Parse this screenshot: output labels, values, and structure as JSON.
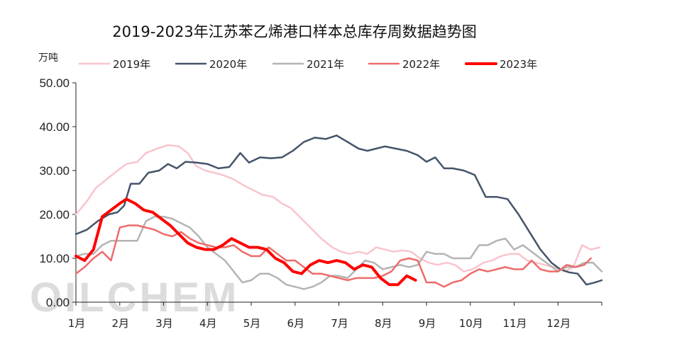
{
  "chart_data": {
    "type": "line",
    "title": "2019-2023年江苏苯乙烯港口样本总库存周数据趋势图",
    "unit_label": "万吨",
    "watermark": "OILCHEM",
    "ylim": [
      0,
      50
    ],
    "y_ticks": [
      "0.00",
      "10.00",
      "20.00",
      "30.00",
      "40.00",
      "50.00"
    ],
    "x_range": [
      1,
      13
    ],
    "x_ticks": [
      "1月",
      "2月",
      "3月",
      "4月",
      "5月",
      "6月",
      "7月",
      "8月",
      "9月",
      "10月",
      "11月",
      "12月"
    ],
    "legend_position": "top",
    "grid": false,
    "series": [
      {
        "name": "2019年",
        "color": "#f9c4cc",
        "width": 2.5,
        "points": [
          [
            1.0,
            20.0
          ],
          [
            1.25,
            23.0
          ],
          [
            1.45,
            26.0
          ],
          [
            1.7,
            28.0
          ],
          [
            1.95,
            30.0
          ],
          [
            2.15,
            31.5
          ],
          [
            2.4,
            32.0
          ],
          [
            2.6,
            34.0
          ],
          [
            2.85,
            35.0
          ],
          [
            3.1,
            35.8
          ],
          [
            3.35,
            35.5
          ],
          [
            3.55,
            34.0
          ],
          [
            3.75,
            31.0
          ],
          [
            3.95,
            30.0
          ],
          [
            4.15,
            29.5
          ],
          [
            4.35,
            29.0
          ],
          [
            4.6,
            28.0
          ],
          [
            4.85,
            26.5
          ],
          [
            5.05,
            25.5
          ],
          [
            5.25,
            24.5
          ],
          [
            5.5,
            24.0
          ],
          [
            5.7,
            22.5
          ],
          [
            5.9,
            21.5
          ],
          [
            6.1,
            19.5
          ],
          [
            6.35,
            17.0
          ],
          [
            6.6,
            14.5
          ],
          [
            6.85,
            12.5
          ],
          [
            7.05,
            11.5
          ],
          [
            7.25,
            11.0
          ],
          [
            7.45,
            11.5
          ],
          [
            7.65,
            11.0
          ],
          [
            7.85,
            12.5
          ],
          [
            8.05,
            12.0
          ],
          [
            8.25,
            11.5
          ],
          [
            8.45,
            11.8
          ],
          [
            8.65,
            11.5
          ],
          [
            8.85,
            10.0
          ],
          [
            9.05,
            9.0
          ],
          [
            9.25,
            8.5
          ],
          [
            9.45,
            9.0
          ],
          [
            9.65,
            8.5
          ],
          [
            9.85,
            7.0
          ],
          [
            10.05,
            7.5
          ],
          [
            10.3,
            9.0
          ],
          [
            10.5,
            9.5
          ],
          [
            10.7,
            10.5
          ],
          [
            10.9,
            11.0
          ],
          [
            11.1,
            11.0
          ],
          [
            11.3,
            9.5
          ],
          [
            11.5,
            9.0
          ],
          [
            11.7,
            8.5
          ],
          [
            11.9,
            8.0
          ],
          [
            12.15,
            7.0
          ],
          [
            12.35,
            8.0
          ],
          [
            12.55,
            13.0
          ],
          [
            12.75,
            12.0
          ],
          [
            12.95,
            12.5
          ]
        ]
      },
      {
        "name": "2020年",
        "color": "#44546a",
        "width": 2.5,
        "points": [
          [
            1.0,
            15.5
          ],
          [
            1.25,
            16.5
          ],
          [
            1.5,
            18.5
          ],
          [
            1.75,
            20.0
          ],
          [
            1.95,
            20.5
          ],
          [
            2.1,
            22.0
          ],
          [
            2.25,
            27.0
          ],
          [
            2.45,
            27.0
          ],
          [
            2.65,
            29.5
          ],
          [
            2.9,
            30.0
          ],
          [
            3.1,
            31.5
          ],
          [
            3.3,
            30.5
          ],
          [
            3.5,
            32.0
          ],
          [
            3.75,
            31.8
          ],
          [
            4.0,
            31.5
          ],
          [
            4.25,
            30.5
          ],
          [
            4.5,
            30.8
          ],
          [
            4.75,
            34.0
          ],
          [
            4.95,
            31.8
          ],
          [
            5.2,
            33.0
          ],
          [
            5.45,
            32.8
          ],
          [
            5.7,
            33.0
          ],
          [
            5.95,
            34.5
          ],
          [
            6.2,
            36.5
          ],
          [
            6.45,
            37.5
          ],
          [
            6.7,
            37.2
          ],
          [
            6.95,
            38.0
          ],
          [
            7.2,
            36.5
          ],
          [
            7.45,
            35.0
          ],
          [
            7.65,
            34.5
          ],
          [
            7.85,
            35.0
          ],
          [
            8.05,
            35.5
          ],
          [
            8.3,
            35.0
          ],
          [
            8.55,
            34.5
          ],
          [
            8.8,
            33.5
          ],
          [
            9.0,
            32.0
          ],
          [
            9.2,
            33.0
          ],
          [
            9.4,
            30.5
          ],
          [
            9.6,
            30.5
          ],
          [
            9.85,
            30.0
          ],
          [
            10.1,
            29.0
          ],
          [
            10.35,
            24.0
          ],
          [
            10.6,
            24.0
          ],
          [
            10.85,
            23.5
          ],
          [
            11.1,
            20.0
          ],
          [
            11.35,
            16.0
          ],
          [
            11.6,
            12.0
          ],
          [
            11.85,
            9.0
          ],
          [
            12.05,
            7.5
          ],
          [
            12.25,
            6.8
          ],
          [
            12.45,
            6.5
          ],
          [
            12.65,
            4.0
          ],
          [
            12.85,
            4.5
          ],
          [
            13.0,
            5.0
          ]
        ]
      },
      {
        "name": "2021年",
        "color": "#b4b4b4",
        "width": 2.5,
        "points": [
          [
            1.0,
            10.5
          ],
          [
            1.2,
            11.0
          ],
          [
            1.4,
            11.0
          ],
          [
            1.6,
            13.0
          ],
          [
            1.8,
            14.0
          ],
          [
            2.0,
            14.0
          ],
          [
            2.2,
            14.0
          ],
          [
            2.4,
            14.0
          ],
          [
            2.6,
            18.5
          ],
          [
            2.8,
            19.5
          ],
          [
            3.0,
            19.5
          ],
          [
            3.2,
            19.0
          ],
          [
            3.4,
            18.0
          ],
          [
            3.6,
            17.0
          ],
          [
            3.8,
            15.0
          ],
          [
            4.0,
            12.5
          ],
          [
            4.2,
            11.0
          ],
          [
            4.4,
            9.5
          ],
          [
            4.6,
            7.0
          ],
          [
            4.8,
            4.5
          ],
          [
            5.0,
            5.0
          ],
          [
            5.2,
            6.5
          ],
          [
            5.4,
            6.5
          ],
          [
            5.6,
            5.5
          ],
          [
            5.8,
            4.0
          ],
          [
            6.0,
            3.5
          ],
          [
            6.2,
            3.0
          ],
          [
            6.4,
            3.5
          ],
          [
            6.6,
            4.5
          ],
          [
            6.8,
            6.0
          ],
          [
            7.0,
            6.0
          ],
          [
            7.2,
            5.5
          ],
          [
            7.4,
            7.5
          ],
          [
            7.6,
            9.5
          ],
          [
            7.8,
            9.0
          ],
          [
            8.0,
            7.5
          ],
          [
            8.2,
            8.0
          ],
          [
            8.4,
            8.5
          ],
          [
            8.6,
            8.0
          ],
          [
            8.8,
            8.5
          ],
          [
            9.0,
            11.5
          ],
          [
            9.2,
            11.0
          ],
          [
            9.4,
            11.0
          ],
          [
            9.6,
            10.0
          ],
          [
            9.8,
            10.0
          ],
          [
            10.0,
            10.0
          ],
          [
            10.2,
            13.0
          ],
          [
            10.4,
            13.0
          ],
          [
            10.6,
            14.0
          ],
          [
            10.8,
            14.5
          ],
          [
            11.0,
            12.0
          ],
          [
            11.2,
            13.0
          ],
          [
            11.4,
            11.5
          ],
          [
            11.6,
            10.0
          ],
          [
            11.8,
            8.5
          ],
          [
            12.0,
            7.0
          ],
          [
            12.2,
            8.0
          ],
          [
            12.4,
            8.0
          ],
          [
            12.6,
            9.0
          ],
          [
            12.8,
            9.0
          ],
          [
            13.0,
            7.0
          ]
        ]
      },
      {
        "name": "2022年",
        "color": "#ee6b6b",
        "width": 2.5,
        "points": [
          [
            1.0,
            6.5
          ],
          [
            1.2,
            8.0
          ],
          [
            1.4,
            10.0
          ],
          [
            1.6,
            11.5
          ],
          [
            1.8,
            9.5
          ],
          [
            2.0,
            17.0
          ],
          [
            2.2,
            17.5
          ],
          [
            2.4,
            17.5
          ],
          [
            2.6,
            17.0
          ],
          [
            2.8,
            16.5
          ],
          [
            3.0,
            15.5
          ],
          [
            3.2,
            15.0
          ],
          [
            3.4,
            16.0
          ],
          [
            3.6,
            14.5
          ],
          [
            3.8,
            13.5
          ],
          [
            4.0,
            13.0
          ],
          [
            4.2,
            12.5
          ],
          [
            4.4,
            12.5
          ],
          [
            4.6,
            13.0
          ],
          [
            4.8,
            11.5
          ],
          [
            5.0,
            10.5
          ],
          [
            5.2,
            10.5
          ],
          [
            5.4,
            12.5
          ],
          [
            5.6,
            11.0
          ],
          [
            5.8,
            9.5
          ],
          [
            6.0,
            9.5
          ],
          [
            6.2,
            8.0
          ],
          [
            6.4,
            6.5
          ],
          [
            6.6,
            6.5
          ],
          [
            6.8,
            6.0
          ],
          [
            7.0,
            5.5
          ],
          [
            7.2,
            5.0
          ],
          [
            7.4,
            5.5
          ],
          [
            7.6,
            5.5
          ],
          [
            7.8,
            5.5
          ],
          [
            8.0,
            6.0
          ],
          [
            8.2,
            7.0
          ],
          [
            8.4,
            9.5
          ],
          [
            8.6,
            10.0
          ],
          [
            8.8,
            9.5
          ],
          [
            9.0,
            4.5
          ],
          [
            9.2,
            4.5
          ],
          [
            9.4,
            3.5
          ],
          [
            9.6,
            4.5
          ],
          [
            9.8,
            5.0
          ],
          [
            10.0,
            6.5
          ],
          [
            10.2,
            7.5
          ],
          [
            10.4,
            7.0
          ],
          [
            10.6,
            7.5
          ],
          [
            10.8,
            8.0
          ],
          [
            11.0,
            7.5
          ],
          [
            11.2,
            7.5
          ],
          [
            11.4,
            9.5
          ],
          [
            11.6,
            7.5
          ],
          [
            11.8,
            7.0
          ],
          [
            12.0,
            7.0
          ],
          [
            12.2,
            8.5
          ],
          [
            12.4,
            8.0
          ],
          [
            12.6,
            8.5
          ],
          [
            12.75,
            10.0
          ]
        ]
      },
      {
        "name": "2023年",
        "color": "#ff0000",
        "width": 4,
        "points": [
          [
            1.0,
            10.5
          ],
          [
            1.2,
            9.5
          ],
          [
            1.4,
            12.0
          ],
          [
            1.6,
            19.5
          ],
          [
            1.8,
            21.0
          ],
          [
            2.0,
            22.5
          ],
          [
            2.15,
            23.5
          ],
          [
            2.35,
            22.5
          ],
          [
            2.55,
            21.0
          ],
          [
            2.75,
            20.5
          ],
          [
            2.95,
            19.0
          ],
          [
            3.15,
            17.5
          ],
          [
            3.35,
            15.5
          ],
          [
            3.55,
            13.5
          ],
          [
            3.75,
            12.5
          ],
          [
            3.95,
            12.0
          ],
          [
            4.15,
            12.0
          ],
          [
            4.35,
            13.0
          ],
          [
            4.55,
            14.5
          ],
          [
            4.75,
            13.5
          ],
          [
            4.95,
            12.5
          ],
          [
            5.15,
            12.5
          ],
          [
            5.35,
            12.0
          ],
          [
            5.55,
            10.0
          ],
          [
            5.75,
            9.0
          ],
          [
            5.95,
            7.0
          ],
          [
            6.15,
            6.5
          ],
          [
            6.35,
            8.5
          ],
          [
            6.55,
            9.5
          ],
          [
            6.75,
            9.0
          ],
          [
            6.95,
            9.5
          ],
          [
            7.15,
            9.0
          ],
          [
            7.35,
            7.5
          ],
          [
            7.55,
            8.5
          ],
          [
            7.75,
            8.0
          ],
          [
            7.95,
            5.5
          ],
          [
            8.15,
            4.0
          ],
          [
            8.35,
            4.0
          ],
          [
            8.55,
            6.0
          ],
          [
            8.75,
            5.0
          ]
        ]
      }
    ]
  }
}
